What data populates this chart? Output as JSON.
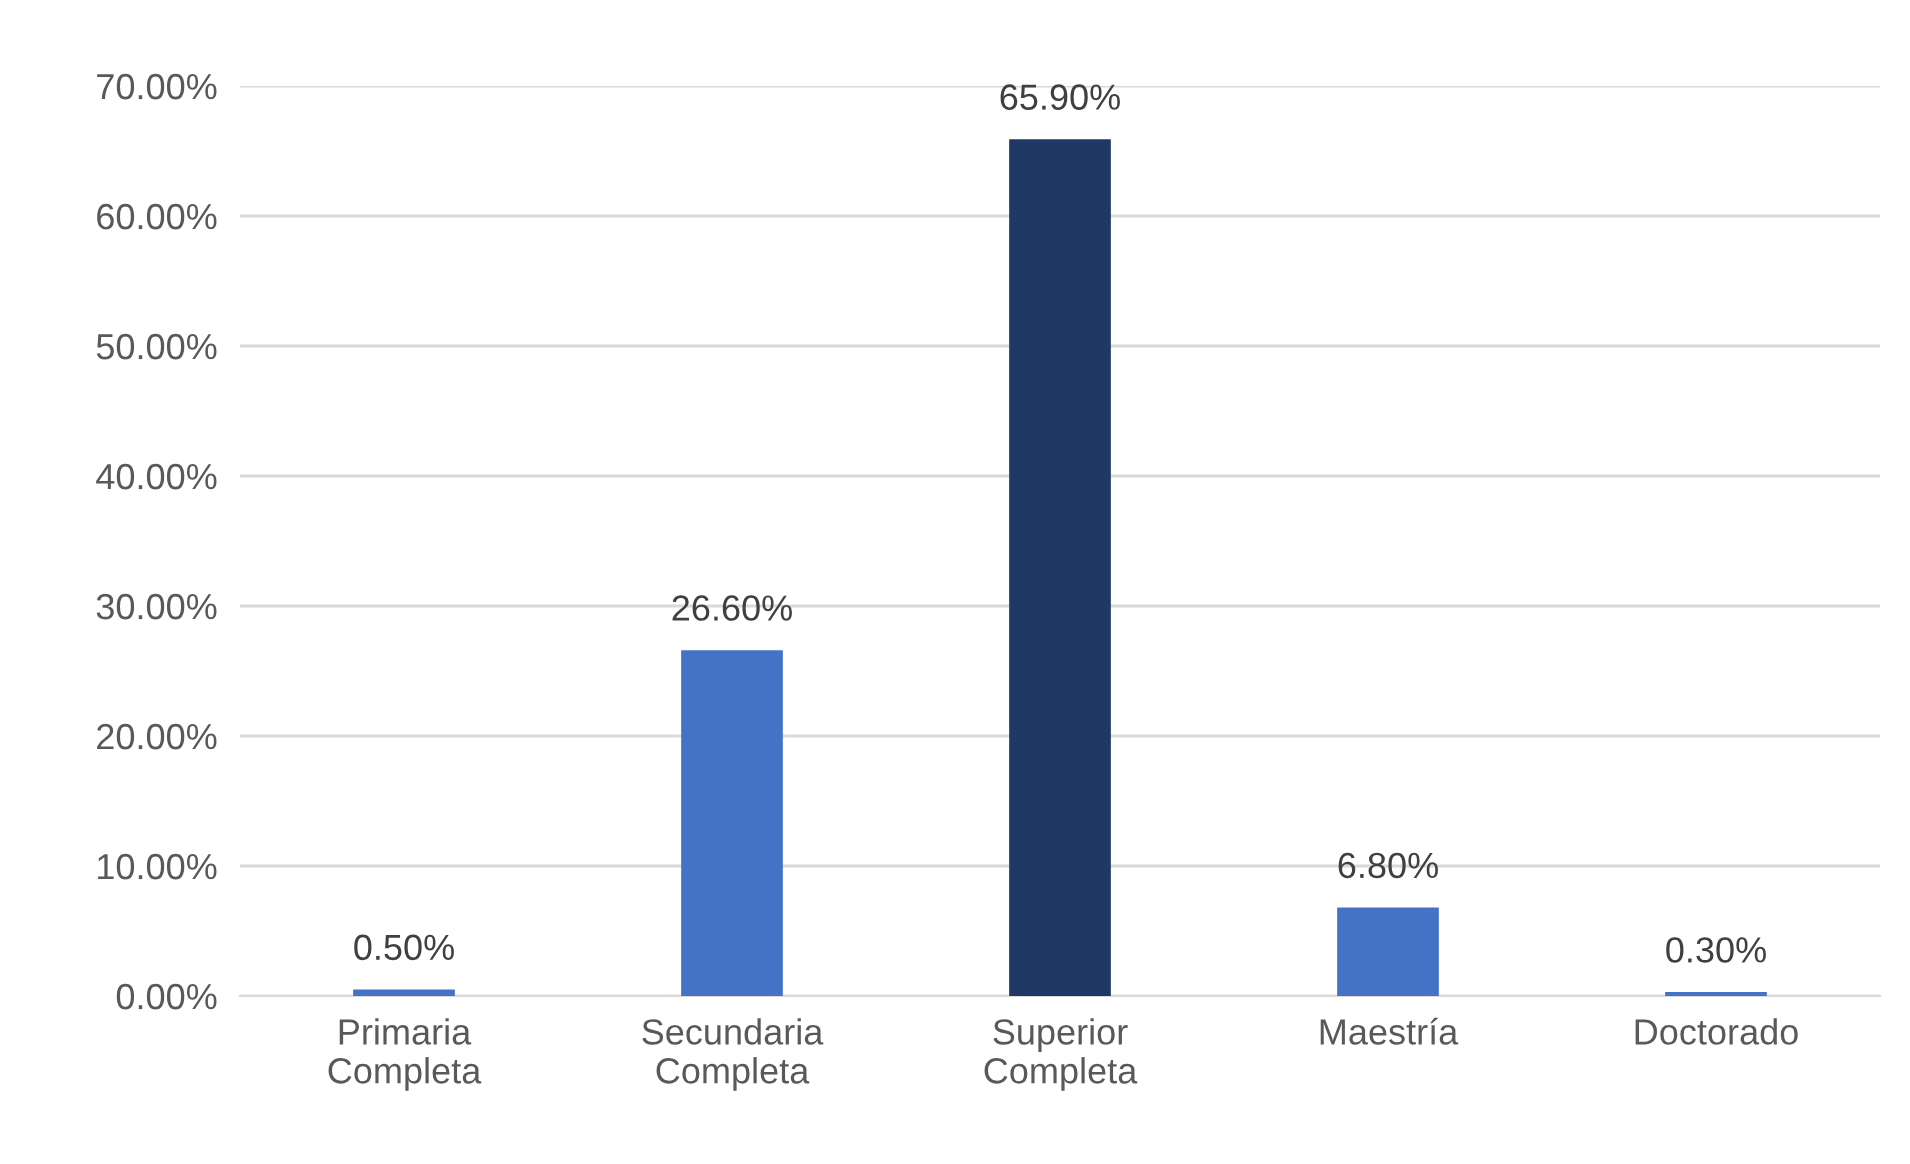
{
  "chart_data": {
    "type": "bar",
    "categories": [
      "Primaria\nCompleta",
      "Secundaria\nCompleta",
      "Superior\nCompleta",
      "Maestría",
      "Doctorado"
    ],
    "values": [
      0.5,
      26.6,
      65.9,
      6.8,
      0.3
    ],
    "colors": [
      "#4472c4",
      "#4472c4",
      "#1f3864",
      "#4472c4",
      "#4472c4"
    ],
    "value_labels": [
      "0.50%",
      "26.60%",
      "65.90%",
      "6.80%",
      "0.30%"
    ],
    "ylim": [
      0,
      70
    ],
    "yticks": [
      {
        "value": 0,
        "label": "0.00%"
      },
      {
        "value": 10,
        "label": "10.00%"
      },
      {
        "value": 20,
        "label": "20.00%"
      },
      {
        "value": 30,
        "label": "30.00%"
      },
      {
        "value": 40,
        "label": "40.00%"
      },
      {
        "value": 50,
        "label": "50.00%"
      },
      {
        "value": 60,
        "label": "60.00%"
      },
      {
        "value": 70,
        "label": "70.00%"
      }
    ],
    "grid": "y"
  }
}
